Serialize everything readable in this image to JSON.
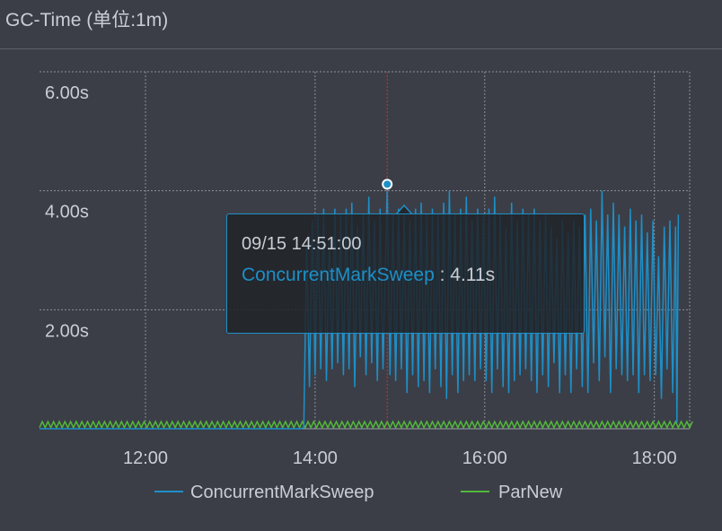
{
  "panel": {
    "title": "GC-Time (单位:1m)"
  },
  "tooltip": {
    "time": "09/15 14:51:00",
    "series": "ConcurrentMarkSweep",
    "separator": " : ",
    "value": "4.11s"
  },
  "colors": {
    "background": "#3b3e47",
    "grid": "#8c9098",
    "text": "#c9cdd4",
    "cms": "#1e8fc7",
    "parnew": "#52b83a",
    "crosshair": "#d32f2f"
  },
  "chart_data": {
    "type": "line",
    "xlim": [
      "10:45",
      "18:25"
    ],
    "ylim": [
      0,
      6
    ],
    "y_ticks": [
      {
        "value": 2,
        "label": "2.00s"
      },
      {
        "value": 4,
        "label": "4.00s"
      },
      {
        "value": 6,
        "label": "6.00s"
      }
    ],
    "x_ticks": [
      {
        "value": "12:00",
        "label": "12:00"
      },
      {
        "value": "14:00",
        "label": "14:00"
      },
      {
        "value": "16:00",
        "label": "16:00"
      },
      {
        "value": "18:00",
        "label": "18:00"
      }
    ],
    "grid": true,
    "legend_position": "bottom",
    "crosshair_x": "14:51",
    "highlight_point": {
      "x": "14:51",
      "y": 4.11
    },
    "series": [
      {
        "name": "ConcurrentMarkSweep",
        "color": "#1e8fc7",
        "points": [
          [
            "10:45",
            0
          ],
          [
            "13:50",
            0
          ],
          [
            "13:52",
            0.02
          ],
          [
            "13:54",
            3.1
          ],
          [
            "13:56",
            0.7
          ],
          [
            "13:58",
            3.5
          ],
          [
            "14:00",
            0.9
          ],
          [
            "14:02",
            3.6
          ],
          [
            "14:04",
            1.0
          ],
          [
            "14:06",
            3.7
          ],
          [
            "14:08",
            0.8
          ],
          [
            "14:10",
            3.2
          ],
          [
            "14:12",
            1.0
          ],
          [
            "14:14",
            3.7
          ],
          [
            "14:16",
            1.1
          ],
          [
            "14:18",
            3.6
          ],
          [
            "14:20",
            0.9
          ],
          [
            "14:22",
            3.7
          ],
          [
            "14:24",
            1.0
          ],
          [
            "14:26",
            3.8
          ],
          [
            "14:28",
            0.7
          ],
          [
            "14:30",
            3.4
          ],
          [
            "14:32",
            1.2
          ],
          [
            "14:34",
            3.6
          ],
          [
            "14:36",
            0.9
          ],
          [
            "14:38",
            3.9
          ],
          [
            "14:40",
            1.1
          ],
          [
            "14:42",
            3.5
          ],
          [
            "14:44",
            0.8
          ],
          [
            "14:46",
            3.7
          ],
          [
            "14:48",
            1.0
          ],
          [
            "14:51",
            4.11
          ],
          [
            "14:53",
            0.9
          ],
          [
            "14:55",
            3.6
          ],
          [
            "14:57",
            0.8
          ],
          [
            "14:59",
            3.7
          ],
          [
            "15:01",
            1.0
          ],
          [
            "15:03",
            3.6
          ],
          [
            "15:05",
            0.6
          ],
          [
            "15:07",
            3.5
          ],
          [
            "15:09",
            0.9
          ],
          [
            "15:11",
            3.7
          ],
          [
            "15:13",
            0.7
          ],
          [
            "15:15",
            3.8
          ],
          [
            "15:17",
            0.8
          ],
          [
            "15:19",
            3.6
          ],
          [
            "15:21",
            0.6
          ],
          [
            "15:23",
            3.7
          ],
          [
            "15:25",
            1.0
          ],
          [
            "15:27",
            3.6
          ],
          [
            "15:29",
            0.7
          ],
          [
            "15:31",
            3.8
          ],
          [
            "15:33",
            0.5
          ],
          [
            "15:35",
            4.0
          ],
          [
            "15:37",
            0.9
          ],
          [
            "15:39",
            3.6
          ],
          [
            "15:41",
            0.6
          ],
          [
            "15:43",
            3.7
          ],
          [
            "15:45",
            0.8
          ],
          [
            "15:47",
            3.9
          ],
          [
            "15:49",
            0.9
          ],
          [
            "15:51",
            3.5
          ],
          [
            "15:53",
            0.8
          ],
          [
            "15:55",
            3.7
          ],
          [
            "15:57",
            1.0
          ],
          [
            "15:59",
            3.6
          ],
          [
            "16:01",
            0.8
          ],
          [
            "16:03",
            3.7
          ],
          [
            "16:05",
            0.6
          ],
          [
            "16:07",
            3.9
          ],
          [
            "16:09",
            1.0
          ],
          [
            "16:11",
            3.6
          ],
          [
            "16:13",
            0.7
          ],
          [
            "16:15",
            3.4
          ],
          [
            "16:17",
            0.6
          ],
          [
            "16:19",
            3.8
          ],
          [
            "16:21",
            0.8
          ],
          [
            "16:23",
            3.5
          ],
          [
            "16:25",
            0.9
          ],
          [
            "16:27",
            3.7
          ],
          [
            "16:29",
            1.0
          ],
          [
            "16:31",
            3.6
          ],
          [
            "16:33",
            0.8
          ],
          [
            "16:35",
            3.7
          ],
          [
            "16:37",
            0.6
          ],
          [
            "16:39",
            3.5
          ],
          [
            "16:41",
            0.9
          ],
          [
            "16:43",
            3.6
          ],
          [
            "16:45",
            0.7
          ],
          [
            "16:47",
            3.4
          ],
          [
            "16:49",
            1.1
          ],
          [
            "16:51",
            3.2
          ],
          [
            "16:53",
            0.6
          ],
          [
            "16:55",
            3.5
          ],
          [
            "16:57",
            0.9
          ],
          [
            "16:59",
            3.3
          ],
          [
            "17:01",
            0.6
          ],
          [
            "17:03",
            3.5
          ],
          [
            "17:05",
            1.0
          ],
          [
            "17:07",
            3.4
          ],
          [
            "17:09",
            0.7
          ],
          [
            "17:11",
            3.6
          ],
          [
            "17:13",
            0.6
          ],
          [
            "17:15",
            3.7
          ],
          [
            "17:17",
            1.1
          ],
          [
            "17:19",
            3.5
          ],
          [
            "17:21",
            0.8
          ],
          [
            "17:23",
            4.0
          ],
          [
            "17:25",
            1.2
          ],
          [
            "17:27",
            3.6
          ],
          [
            "17:29",
            0.6
          ],
          [
            "17:31",
            3.8
          ],
          [
            "17:33",
            1.0
          ],
          [
            "17:35",
            3.6
          ],
          [
            "17:37",
            0.9
          ],
          [
            "17:39",
            3.4
          ],
          [
            "17:41",
            0.8
          ],
          [
            "17:43",
            3.7
          ],
          [
            "17:45",
            0.9
          ],
          [
            "17:47",
            3.5
          ],
          [
            "17:49",
            0.6
          ],
          [
            "17:51",
            3.6
          ],
          [
            "17:53",
            0.9
          ],
          [
            "17:55",
            3.3
          ],
          [
            "17:57",
            0.8
          ],
          [
            "17:59",
            3.5
          ],
          [
            "18:01",
            0.9
          ],
          [
            "18:03",
            2.9
          ],
          [
            "18:05",
            0.5
          ],
          [
            "18:07",
            3.4
          ],
          [
            "18:09",
            1.0
          ],
          [
            "18:11",
            3.5
          ],
          [
            "18:13",
            0.6
          ],
          [
            "18:15",
            3.4
          ],
          [
            "18:16",
            0.1
          ],
          [
            "18:17",
            3.6
          ]
        ]
      },
      {
        "name": "ParNew",
        "color": "#52b83a",
        "baseline": 0.02,
        "spike": 0.12,
        "interval_min": 4
      }
    ]
  }
}
